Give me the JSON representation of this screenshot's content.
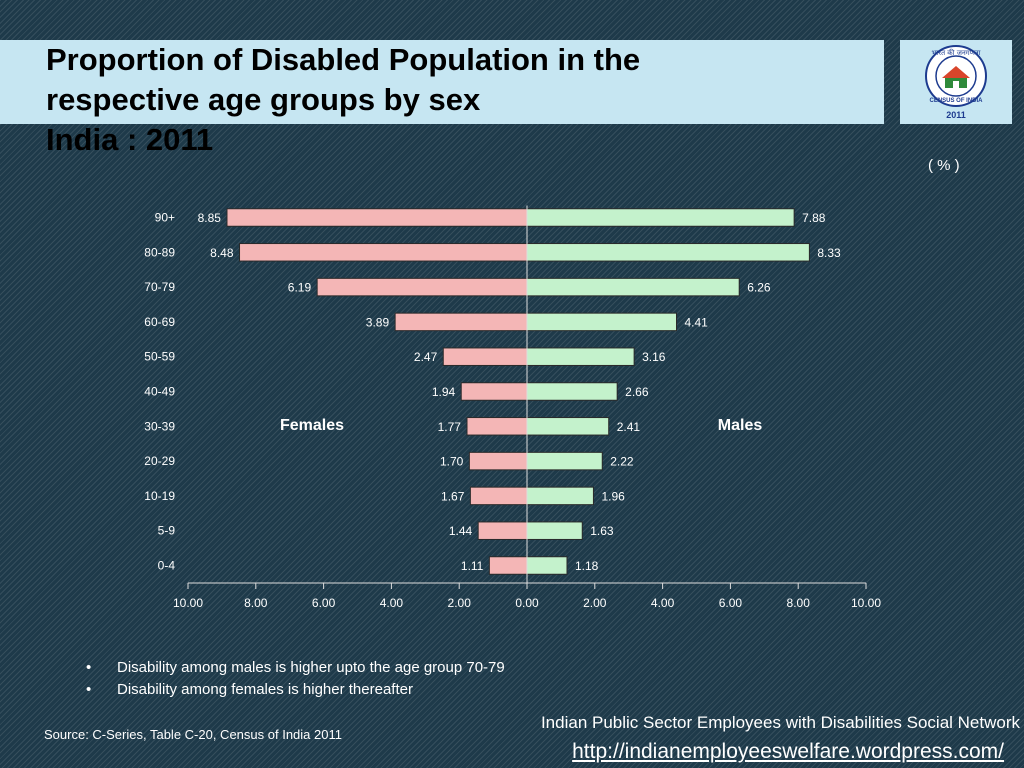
{
  "header": {
    "title_line1": "Proportion of Disabled Population in the",
    "title_line2": "respective age groups by sex",
    "title_line3": "India : 2011"
  },
  "logo": {
    "arc_text": "भारत की जनगणना",
    "ring_text": "CENSUS OF INDIA",
    "year": "2011"
  },
  "unit_label": "( % )",
  "chart_data": {
    "type": "bar",
    "orientation": "horizontal-population-pyramid",
    "categories": [
      "90+",
      "80-89",
      "70-79",
      "60-69",
      "50-59",
      "40-49",
      "30-39",
      "20-29",
      "10-19",
      "5-9",
      "0-4"
    ],
    "series": [
      {
        "name": "Females",
        "side": "left",
        "color": "#f4b6b6",
        "values": [
          8.85,
          8.48,
          6.19,
          3.89,
          2.47,
          1.94,
          1.77,
          1.7,
          1.67,
          1.44,
          1.11
        ]
      },
      {
        "name": "Males",
        "side": "right",
        "color": "#c4f2cc",
        "values": [
          7.88,
          8.33,
          6.26,
          4.41,
          3.16,
          2.66,
          2.41,
          2.22,
          1.96,
          1.63,
          1.18
        ]
      }
    ],
    "x_ticks": [
      "10.00",
      "8.00",
      "6.00",
      "4.00",
      "2.00",
      "0.00",
      "2.00",
      "4.00",
      "6.00",
      "8.00",
      "10.00"
    ],
    "xlim": [
      -10,
      10
    ],
    "grid": false,
    "legend": "inline labels"
  },
  "bullets": [
    "Disability  among males is higher upto the age group 70-79",
    "Disability  among females is higher thereafter"
  ],
  "source": "Source: C-Series, Table C-20, Census of India 2011",
  "footer": {
    "network": "Indian Public Sector Employees with Disabilities Social Network",
    "url": "http://indianemployeeswelfare.wordpress.com/"
  }
}
